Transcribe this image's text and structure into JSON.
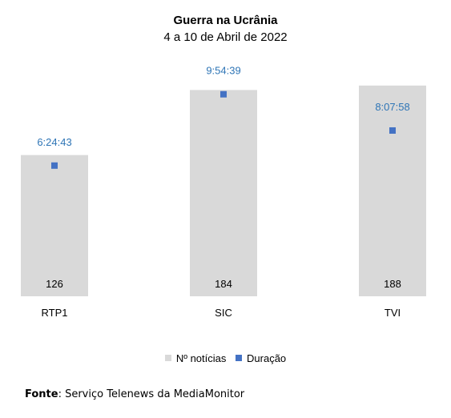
{
  "chart_data": {
    "type": "bar",
    "title": "Guerra na Ucrânia",
    "subtitle": "4 a 10 de Abril de 2022",
    "categories": [
      "RTP1",
      "SIC",
      "TVI"
    ],
    "series": [
      {
        "name": "Nº notícias",
        "type": "bar",
        "values": [
          126,
          184,
          188
        ],
        "labels": [
          "126",
          "184",
          "188"
        ],
        "color": "#d9d9d9"
      },
      {
        "name": "Duração",
        "type": "scatter",
        "values_seconds": [
          23083,
          35679,
          29278
        ],
        "labels": [
          "6:24:43",
          "9:54:39",
          "8:07:58"
        ],
        "color": "#4472c4",
        "label_color": "#2e75b6"
      }
    ],
    "ylim": [
      0,
      200
    ],
    "ylim_duration_seconds": [
      0,
      39600
    ],
    "grid": false,
    "legend_position": "bottom"
  },
  "legend": {
    "items": [
      {
        "label": "Nº notícias",
        "color": "#d9d9d9"
      },
      {
        "label": "Duração",
        "color": "#4472c4"
      }
    ]
  },
  "source": {
    "label": "Fonte",
    "text": ": Serviço Telenews da MediaMonitor"
  }
}
